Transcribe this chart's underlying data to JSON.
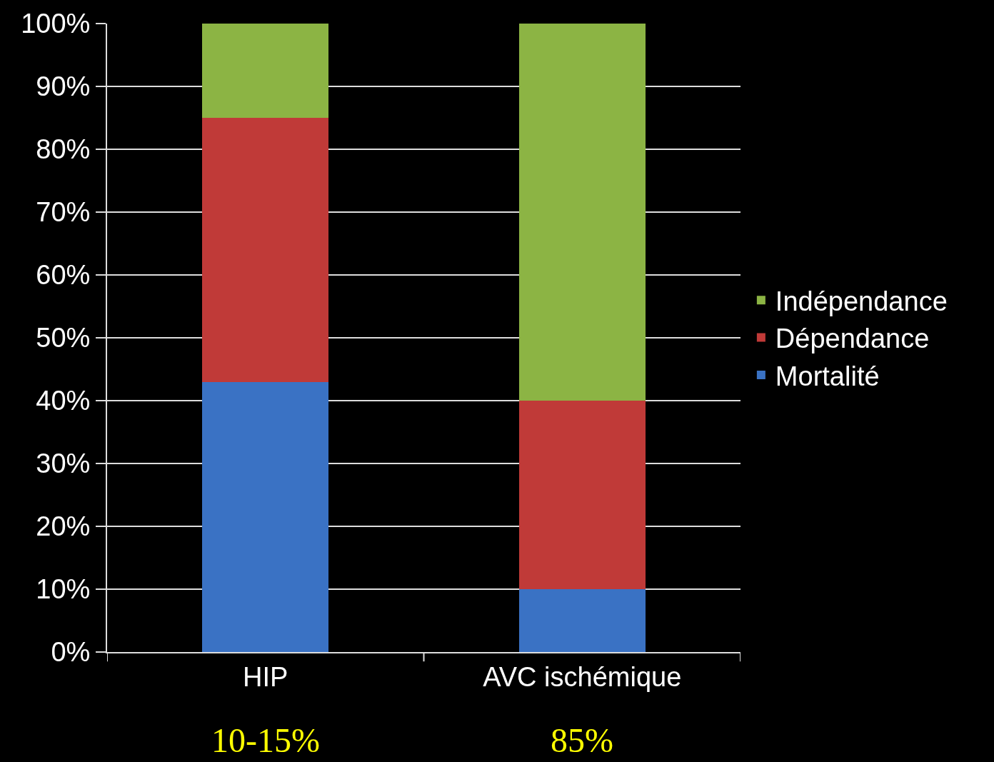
{
  "chart_data": {
    "type": "bar",
    "stacked": true,
    "categories": [
      "HIP",
      "AVC ischémique"
    ],
    "series": [
      {
        "name": "Mortalité",
        "color": "#3a72c4",
        "values": [
          43,
          10
        ]
      },
      {
        "name": "Dépendance",
        "color": "#c03a38",
        "values": [
          42,
          30
        ]
      },
      {
        "name": "Indépendance",
        "color": "#8cb444",
        "values": [
          15,
          60
        ]
      }
    ],
    "ylim": [
      0,
      100
    ],
    "yticks": [
      {
        "value": 0,
        "label": "0%"
      },
      {
        "value": 10,
        "label": "10%"
      },
      {
        "value": 20,
        "label": "20%"
      },
      {
        "value": 30,
        "label": "30%"
      },
      {
        "value": 40,
        "label": "40%"
      },
      {
        "value": 50,
        "label": "50%"
      },
      {
        "value": 60,
        "label": "60%"
      },
      {
        "value": 70,
        "label": "70%"
      },
      {
        "value": 80,
        "label": "80%"
      },
      {
        "value": 90,
        "label": "90%"
      },
      {
        "value": 100,
        "label": "100%"
      }
    ],
    "grid": "y",
    "legend": "right",
    "annotations": [
      "10-15%",
      "85%"
    ]
  }
}
